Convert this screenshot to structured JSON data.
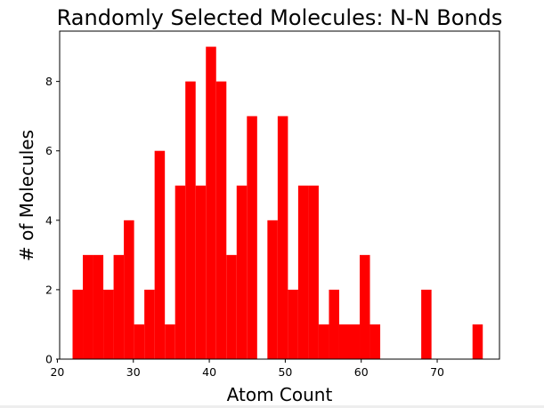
{
  "chart_data": {
    "type": "histogram",
    "title": "Randomly Selected Molecules: N-N Bonds",
    "xlabel": "Atom Count",
    "ylabel": "# of Molecules",
    "xlim": [
      20.3,
      78.2
    ],
    "ylim": [
      0,
      9.45
    ],
    "xticks": [
      20,
      30,
      40,
      50,
      60,
      70
    ],
    "yticks": [
      0,
      2,
      4,
      6,
      8
    ],
    "bar_color": "#ff0000",
    "bins": [
      {
        "x0": 22.0,
        "x1": 23.35,
        "count": 2
      },
      {
        "x0": 23.35,
        "x1": 24.7,
        "count": 3
      },
      {
        "x0": 24.7,
        "x1": 26.05,
        "count": 3
      },
      {
        "x0": 26.05,
        "x1": 27.4,
        "count": 2
      },
      {
        "x0": 27.4,
        "x1": 28.75,
        "count": 3
      },
      {
        "x0": 28.75,
        "x1": 30.1,
        "count": 4
      },
      {
        "x0": 30.1,
        "x1": 31.45,
        "count": 1
      },
      {
        "x0": 31.45,
        "x1": 32.8,
        "count": 2
      },
      {
        "x0": 32.8,
        "x1": 34.15,
        "count": 6
      },
      {
        "x0": 34.15,
        "x1": 35.5,
        "count": 1
      },
      {
        "x0": 35.5,
        "x1": 36.85,
        "count": 5
      },
      {
        "x0": 36.85,
        "x1": 38.2,
        "count": 8
      },
      {
        "x0": 38.2,
        "x1": 39.55,
        "count": 5
      },
      {
        "x0": 39.55,
        "x1": 40.9,
        "count": 9
      },
      {
        "x0": 40.9,
        "x1": 42.25,
        "count": 8
      },
      {
        "x0": 42.25,
        "x1": 43.6,
        "count": 3
      },
      {
        "x0": 43.6,
        "x1": 44.95,
        "count": 5
      },
      {
        "x0": 44.95,
        "x1": 46.3,
        "count": 7
      },
      {
        "x0": 46.3,
        "x1": 47.65,
        "count": 0
      },
      {
        "x0": 47.65,
        "x1": 49.0,
        "count": 4
      },
      {
        "x0": 49.0,
        "x1": 50.35,
        "count": 7
      },
      {
        "x0": 50.35,
        "x1": 51.7,
        "count": 2
      },
      {
        "x0": 51.7,
        "x1": 53.05,
        "count": 5
      },
      {
        "x0": 53.05,
        "x1": 54.4,
        "count": 5
      },
      {
        "x0": 54.4,
        "x1": 55.75,
        "count": 1
      },
      {
        "x0": 55.75,
        "x1": 57.1,
        "count": 2
      },
      {
        "x0": 57.1,
        "x1": 58.45,
        "count": 1
      },
      {
        "x0": 58.45,
        "x1": 59.8,
        "count": 1
      },
      {
        "x0": 59.8,
        "x1": 61.15,
        "count": 3
      },
      {
        "x0": 61.15,
        "x1": 62.5,
        "count": 1
      },
      {
        "x0": 67.9,
        "x1": 69.25,
        "count": 2
      },
      {
        "x0": 74.65,
        "x1": 76.0,
        "count": 1
      }
    ]
  }
}
